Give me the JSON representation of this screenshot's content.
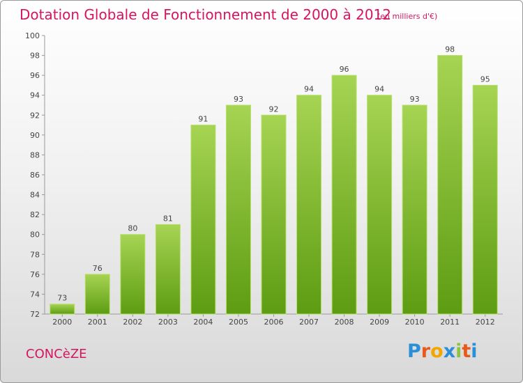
{
  "title": "Dotation Globale de Fonctionnement de 2000 à 2012",
  "unit_note": "(en milliers d'€)",
  "commune": "CONCèZE",
  "logo": {
    "letters": [
      "P",
      "r",
      "o",
      "x",
      "i",
      "t",
      "i"
    ],
    "colors": [
      "#2a8fd8",
      "#e8591a",
      "#f2a600",
      "#2a8fd8",
      "#8bc43f",
      "#e8591a",
      "#2a8fd8"
    ]
  },
  "colors": {
    "accent": "#d4155f",
    "bar_light": "#a6d453",
    "bar_dark": "#5d9c12"
  },
  "chart_data": {
    "type": "bar",
    "title": "Dotation Globale de Fonctionnement de 2000 à 2012",
    "subtitle": "(en milliers d'€)",
    "categories": [
      "2000",
      "2001",
      "2002",
      "2003",
      "2004",
      "2005",
      "2006",
      "2007",
      "2008",
      "2009",
      "2010",
      "2011",
      "2012"
    ],
    "values": [
      73,
      76,
      80,
      81,
      91,
      93,
      92,
      94,
      96,
      94,
      93,
      98,
      95
    ],
    "ylim": [
      72,
      100
    ],
    "yticks": [
      72,
      74,
      76,
      78,
      80,
      82,
      84,
      86,
      88,
      90,
      92,
      94,
      96,
      98,
      100
    ],
    "grid": false,
    "data_labels": true
  }
}
